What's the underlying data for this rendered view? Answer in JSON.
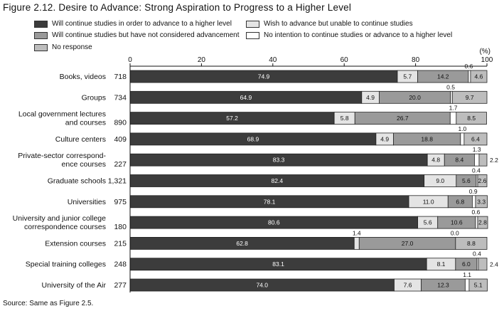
{
  "title": "Figure 2.12. Desire to Advance: Strong Aspiration to Progress to a Higher Level",
  "source": "Source: Same as Figure 2.5.",
  "colors": {
    "higher_level": "#3c3c3c",
    "wish_unable": "#e4e4e4",
    "not_considered": "#9a9a9a",
    "no_intention": "#ffffff",
    "no_response": "#bdbdbd"
  },
  "chart_data": {
    "type": "bar",
    "orientation": "horizontal",
    "stacked": true,
    "title": "",
    "unit_label": "(%)",
    "xlim": [
      0,
      100
    ],
    "xticks": [
      "0",
      "20",
      "40",
      "60",
      "80",
      "100"
    ],
    "legend_placement": "top",
    "categories": [
      {
        "label": [
          "Books, videos"
        ],
        "n": "718"
      },
      {
        "label": [
          "Groups"
        ],
        "n": "734"
      },
      {
        "label": [
          "Local government lectures",
          "and courses"
        ],
        "n": "890"
      },
      {
        "label": [
          "Culture centers"
        ],
        "n": "409"
      },
      {
        "label": [
          "Private-sector correspond-",
          "ence courses"
        ],
        "n": "227"
      },
      {
        "label": [
          "Graduate schools"
        ],
        "n": "1,321"
      },
      {
        "label": [
          "Universities"
        ],
        "n": "975"
      },
      {
        "label": [
          "University and junior college",
          "correspondence courses"
        ],
        "n": "180"
      },
      {
        "label": [
          "Extension courses"
        ],
        "n": "215"
      },
      {
        "label": [
          "Special training colleges"
        ],
        "n": "248"
      },
      {
        "label": [
          "University of the Air"
        ],
        "n": "277"
      }
    ],
    "series": [
      {
        "name": "Will continue studies in order to advance to a higher level",
        "values": [
          74.9,
          64.9,
          57.2,
          68.9,
          83.3,
          82.4,
          78.1,
          80.6,
          62.8,
          83.1,
          74.0
        ],
        "labels": [
          "74.9",
          "64.9",
          "57.2",
          "68.9",
          "83.3",
          "82.4",
          "78.1",
          "80.6",
          "62.8",
          "83.1",
          "74.0"
        ]
      },
      {
        "name": "Wish to advance but unable to continue studies",
        "values": [
          5.7,
          4.9,
          5.8,
          4.9,
          4.8,
          9.0,
          11.0,
          5.6,
          1.4,
          8.1,
          7.6
        ],
        "labels": [
          "5.7",
          "4.9",
          "5.8",
          "4.9",
          "4.8",
          "9.0",
          "11.0",
          "5.6",
          "1.4",
          "8.1",
          "7.6"
        ]
      },
      {
        "name": "Will continue studies but have not considered advancement",
        "values": [
          14.2,
          20.0,
          26.7,
          18.8,
          8.4,
          5.6,
          6.8,
          10.6,
          27.0,
          6.0,
          12.3
        ],
        "labels": [
          "14.2",
          "20.0",
          "26.7",
          "18.8",
          "8.4",
          "5.6",
          "6.8",
          "10.6",
          "27.0",
          "6.0",
          "12.3"
        ]
      },
      {
        "name": "No intention to continue studies or advance to a higher level",
        "values": [
          0.6,
          0.5,
          1.7,
          1.0,
          1.3,
          0.4,
          0.9,
          0.6,
          0.0,
          0.4,
          1.1
        ],
        "labels": [
          "0.6",
          "0.5",
          "1.7",
          "1.0",
          "1.3",
          "0.4",
          "0.9",
          "0.6",
          "0.0",
          "0.4",
          "1.1"
        ]
      },
      {
        "name": "No response",
        "values": [
          4.6,
          9.7,
          8.5,
          6.4,
          2.2,
          2.6,
          3.3,
          2.8,
          8.8,
          2.4,
          5.1
        ],
        "labels": [
          "4.6",
          "9.7",
          "8.5",
          "6.4",
          "2.2",
          "2.6",
          "3.3",
          "2.8",
          "8.8",
          "2.4",
          "5.1"
        ]
      }
    ]
  }
}
